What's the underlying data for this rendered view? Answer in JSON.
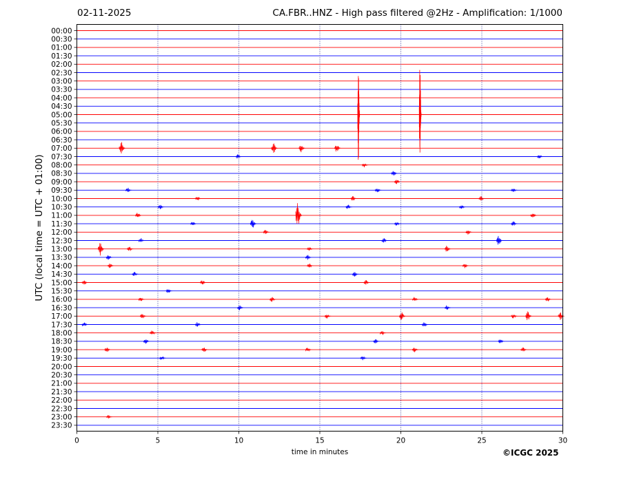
{
  "header": {
    "date": "02-11-2025",
    "title": "CA.FBR..HNZ - High pass filtered @2Hz - Amplification: 1/1000"
  },
  "footer": {
    "copyright": "©ICGC 2025"
  },
  "chart_data": {
    "type": "line",
    "xlabel": "time in minutes",
    "ylabel": "UTC (local time = UTC + 01:00)",
    "xlim": [
      0,
      30
    ],
    "x_ticks": [
      "0",
      "5",
      "10",
      "15",
      "20",
      "25",
      "30"
    ],
    "x_gridlines_dotted": [
      5,
      10,
      15,
      20,
      25
    ],
    "trace_colors": [
      "#ff0000",
      "#0000ff"
    ],
    "trace_labels": [
      "00:00",
      "00:30",
      "01:00",
      "01:30",
      "02:00",
      "02:30",
      "03:00",
      "03:30",
      "04:00",
      "04:30",
      "05:00",
      "05:30",
      "06:00",
      "06:30",
      "07:00",
      "07:30",
      "08:00",
      "08:30",
      "09:00",
      "09:30",
      "10:00",
      "10:30",
      "11:00",
      "11:30",
      "12:00",
      "12:30",
      "13:00",
      "13:30",
      "14:00",
      "14:30",
      "15:00",
      "15:30",
      "16:00",
      "16:30",
      "17:00",
      "17:30",
      "18:00",
      "18:30",
      "19:00",
      "19:30",
      "20:00",
      "20:30",
      "21:00",
      "21:30",
      "22:00",
      "22:30",
      "23:00",
      "23:30"
    ],
    "events": [
      {
        "row": 10,
        "minute": 17.4,
        "amplitude": 6.2,
        "note": "large spike spanning adjacent traces"
      },
      {
        "row": 10,
        "minute": 21.2,
        "amplitude": 6.2,
        "note": "large spike spanning adjacent traces"
      },
      {
        "row": 14,
        "minute": 2.8,
        "amplitude": 0.8
      },
      {
        "row": 14,
        "minute": 12.2,
        "amplitude": 0.6
      },
      {
        "row": 14,
        "minute": 13.9,
        "amplitude": 0.5
      },
      {
        "row": 14,
        "minute": 16.1,
        "amplitude": 0.5
      },
      {
        "row": 15,
        "minute": 10.0,
        "amplitude": 0.3
      },
      {
        "row": 15,
        "minute": 28.6,
        "amplitude": 0.3
      },
      {
        "row": 16,
        "minute": 17.8,
        "amplitude": 0.3
      },
      {
        "row": 17,
        "minute": 19.6,
        "amplitude": 0.3
      },
      {
        "row": 18,
        "minute": 19.8,
        "amplitude": 0.3
      },
      {
        "row": 19,
        "minute": 3.2,
        "amplitude": 0.3
      },
      {
        "row": 19,
        "minute": 18.6,
        "amplitude": 0.3
      },
      {
        "row": 19,
        "minute": 27.0,
        "amplitude": 0.3
      },
      {
        "row": 20,
        "minute": 7.5,
        "amplitude": 0.3
      },
      {
        "row": 20,
        "minute": 17.1,
        "amplitude": 0.3
      },
      {
        "row": 20,
        "minute": 25.0,
        "amplitude": 0.3
      },
      {
        "row": 21,
        "minute": 5.2,
        "amplitude": 0.3
      },
      {
        "row": 21,
        "minute": 16.8,
        "amplitude": 0.3
      },
      {
        "row": 21,
        "minute": 23.8,
        "amplitude": 0.3
      },
      {
        "row": 22,
        "minute": 3.8,
        "amplitude": 0.4
      },
      {
        "row": 22,
        "minute": 13.7,
        "amplitude": 1.6
      },
      {
        "row": 22,
        "minute": 28.2,
        "amplitude": 0.4
      },
      {
        "row": 23,
        "minute": 7.2,
        "amplitude": 0.3
      },
      {
        "row": 23,
        "minute": 10.9,
        "amplitude": 0.6
      },
      {
        "row": 23,
        "minute": 19.8,
        "amplitude": 0.3
      },
      {
        "row": 23,
        "minute": 27.0,
        "amplitude": 0.3
      },
      {
        "row": 24,
        "minute": 11.7,
        "amplitude": 0.3
      },
      {
        "row": 24,
        "minute": 24.2,
        "amplitude": 0.3
      },
      {
        "row": 25,
        "minute": 4.0,
        "amplitude": 0.3
      },
      {
        "row": 25,
        "minute": 19.0,
        "amplitude": 0.3
      },
      {
        "row": 25,
        "minute": 26.1,
        "amplitude": 0.6
      },
      {
        "row": 26,
        "minute": 1.5,
        "amplitude": 0.8
      },
      {
        "row": 26,
        "minute": 3.3,
        "amplitude": 0.3
      },
      {
        "row": 26,
        "minute": 14.4,
        "amplitude": 0.3
      },
      {
        "row": 26,
        "minute": 22.9,
        "amplitude": 0.4
      },
      {
        "row": 27,
        "minute": 2.0,
        "amplitude": 0.3
      },
      {
        "row": 27,
        "minute": 14.3,
        "amplitude": 0.3
      },
      {
        "row": 28,
        "minute": 2.1,
        "amplitude": 0.3
      },
      {
        "row": 28,
        "minute": 14.4,
        "amplitude": 0.3
      },
      {
        "row": 28,
        "minute": 24.0,
        "amplitude": 0.3
      },
      {
        "row": 29,
        "minute": 3.6,
        "amplitude": 0.3
      },
      {
        "row": 29,
        "minute": 17.2,
        "amplitude": 0.3
      },
      {
        "row": 30,
        "minute": 0.5,
        "amplitude": 0.3
      },
      {
        "row": 30,
        "minute": 7.8,
        "amplitude": 0.3
      },
      {
        "row": 30,
        "minute": 17.9,
        "amplitude": 0.3
      },
      {
        "row": 31,
        "minute": 5.7,
        "amplitude": 0.3
      },
      {
        "row": 32,
        "minute": 4.0,
        "amplitude": 0.3
      },
      {
        "row": 32,
        "minute": 12.1,
        "amplitude": 0.3
      },
      {
        "row": 32,
        "minute": 20.9,
        "amplitude": 0.3
      },
      {
        "row": 32,
        "minute": 29.1,
        "amplitude": 0.3
      },
      {
        "row": 33,
        "minute": 10.1,
        "amplitude": 0.3
      },
      {
        "row": 33,
        "minute": 22.9,
        "amplitude": 0.3
      },
      {
        "row": 34,
        "minute": 4.1,
        "amplitude": 0.3
      },
      {
        "row": 34,
        "minute": 15.5,
        "amplitude": 0.3
      },
      {
        "row": 34,
        "minute": 20.1,
        "amplitude": 0.5
      },
      {
        "row": 34,
        "minute": 27.0,
        "amplitude": 0.3
      },
      {
        "row": 34,
        "minute": 27.9,
        "amplitude": 0.6
      },
      {
        "row": 34,
        "minute": 29.9,
        "amplitude": 0.5
      },
      {
        "row": 35,
        "minute": 0.5,
        "amplitude": 0.3
      },
      {
        "row": 35,
        "minute": 7.5,
        "amplitude": 0.3
      },
      {
        "row": 35,
        "minute": 21.5,
        "amplitude": 0.3
      },
      {
        "row": 36,
        "minute": 4.7,
        "amplitude": 0.3
      },
      {
        "row": 36,
        "minute": 18.9,
        "amplitude": 0.3
      },
      {
        "row": 37,
        "minute": 4.3,
        "amplitude": 0.3
      },
      {
        "row": 37,
        "minute": 18.5,
        "amplitude": 0.3
      },
      {
        "row": 37,
        "minute": 26.2,
        "amplitude": 0.3
      },
      {
        "row": 38,
        "minute": 1.9,
        "amplitude": 0.3
      },
      {
        "row": 38,
        "minute": 7.9,
        "amplitude": 0.3
      },
      {
        "row": 38,
        "minute": 14.3,
        "amplitude": 0.3
      },
      {
        "row": 38,
        "minute": 20.9,
        "amplitude": 0.3
      },
      {
        "row": 38,
        "minute": 27.6,
        "amplitude": 0.3
      },
      {
        "row": 39,
        "minute": 5.3,
        "amplitude": 0.3
      },
      {
        "row": 39,
        "minute": 17.7,
        "amplitude": 0.3
      },
      {
        "row": 46,
        "minute": 2.0,
        "amplitude": 0.2
      }
    ]
  }
}
